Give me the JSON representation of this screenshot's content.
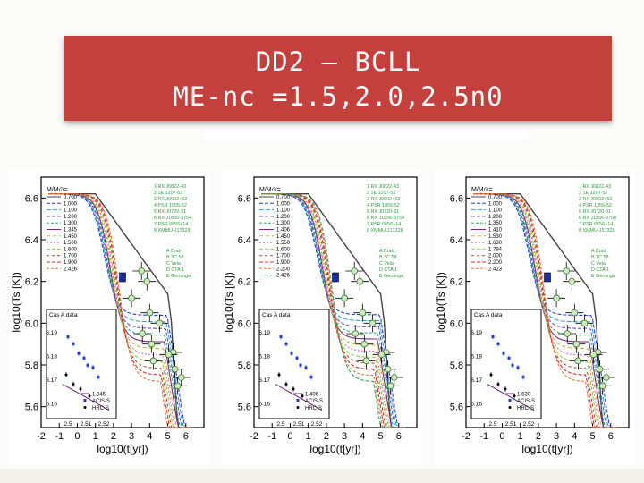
{
  "slide": {
    "title_line1": "DD2 – BCLL",
    "title_line2": "ME-nc =1.5,2.0,2.5n0"
  },
  "chart_data": [
    {
      "type": "line",
      "xlabel": "log10(t[yr])",
      "ylabel": "log10(Ts [K])",
      "xlim": [
        -2,
        7
      ],
      "ylim": [
        5.5,
        6.7
      ],
      "xticks": [
        "-2",
        "-1",
        "0",
        "1",
        "2",
        "3",
        "4",
        "5",
        "6"
      ],
      "yticks": [
        "5.6",
        "5.8",
        "6.0",
        "6.2",
        "6.4",
        "6.6"
      ],
      "mass_legend_title": "M/M⊙=",
      "masses": [
        "0.700",
        "1.000",
        "1.100",
        "1.200",
        "1.300",
        "1.345",
        "1.450",
        "1.500",
        "1.600",
        "1.700",
        "1.900",
        "2.426"
      ],
      "inset_mass": "1.345",
      "inset_title": "Cas A data",
      "inset_yticks": [
        "6.19",
        "6.18",
        "6.17",
        "6.16"
      ],
      "inset_xticks": [
        "2.5",
        "2.51",
        "2.52"
      ],
      "inset_legend": [
        "ACIS-S",
        "HRC-S"
      ],
      "sources_numbered": [
        "1 RX J0822-43",
        "2 1E 1207-52",
        "3 RX J0002+62",
        "4 PSR 1055-52",
        "5 RX J0720-31",
        "6 RX J1856-3754",
        "7 PSR 0656+14",
        "8 XMMU-J17328"
      ],
      "sources_lettered": [
        "A Crab",
        "B 3C 58",
        "C Vela",
        "D CTA 1",
        "E Geminga"
      ]
    },
    {
      "type": "line",
      "xlabel": "log10(t[yr])",
      "ylabel": "log10(Ts [K])",
      "xlim": [
        -2,
        7
      ],
      "ylim": [
        5.5,
        6.7
      ],
      "xticks": [
        "-2",
        "-1",
        "0",
        "1",
        "2",
        "3",
        "4",
        "5",
        "6"
      ],
      "yticks": [
        "5.6",
        "5.8",
        "6.0",
        "6.2",
        "6.4",
        "6.6"
      ],
      "mass_legend_title": "M/M⊙=",
      "masses": [
        "0.700",
        "1.000",
        "1.100",
        "1.200",
        "1.300",
        "1.406",
        "1.450",
        "1.550",
        "1.600",
        "1.700",
        "1.900",
        "2.200",
        "2.426"
      ],
      "inset_mass": "1.406",
      "inset_title": "Cas A data",
      "inset_yticks": [
        "6.19",
        "6.18",
        "6.17",
        "6.16"
      ],
      "inset_xticks": [
        "2.5",
        "2.51",
        "2.52"
      ],
      "inset_legend": [
        "ACIS-S",
        "HRC-S"
      ],
      "sources_numbered": [
        "1 RX J0822-43",
        "2 1E 1207-52",
        "3 RX J0002+62",
        "4 PSR 1055-52",
        "5 RX J0720-31",
        "6 RX J1856-3754",
        "7 PSR 0656+14",
        "8 XMMU-J17328"
      ],
      "sources_lettered": [
        "A Crab",
        "B 3C 58",
        "C Vela",
        "D CTA 1",
        "E Geminga"
      ]
    },
    {
      "type": "line",
      "xlabel": "log10(t[yr])",
      "ylabel": "log10(Ts [K])",
      "xlim": [
        -2,
        7
      ],
      "ylim": [
        5.5,
        6.7
      ],
      "xticks": [
        "-2",
        "-1",
        "0",
        "1",
        "2",
        "3",
        "4",
        "5",
        "6"
      ],
      "yticks": [
        "5.6",
        "5.8",
        "6.0",
        "6.2",
        "6.4",
        "6.6"
      ],
      "mass_legend_title": "M/M⊙=",
      "masses": [
        "0.700",
        "1.000",
        "1.100",
        "1.200",
        "1.350",
        "1.410",
        "1.530",
        "1.630",
        "1.794",
        "2.000",
        "2.200",
        "2.423"
      ],
      "inset_mass": "1.630",
      "inset_title": "Cas A data",
      "inset_yticks": [
        "6.19",
        "6.18",
        "6.17",
        "6.16"
      ],
      "inset_xticks": [
        "2.5",
        "2.51",
        "2.52"
      ],
      "inset_legend": [
        "ACIS-S",
        "HRC-S"
      ],
      "sources_numbered": [
        "1 RX J0822-43",
        "2 1E 1207-52",
        "3 RX J0002+62",
        "4 PSR 1055-52",
        "5 RX J0720-31",
        "6 RX J1856-3754",
        "7 PSR 0656+14",
        "8 XMMU-J17328"
      ],
      "sources_lettered": [
        "A Crab",
        "B 3C 58",
        "C Vela",
        "D CTA 1",
        "E Geminga"
      ]
    }
  ]
}
